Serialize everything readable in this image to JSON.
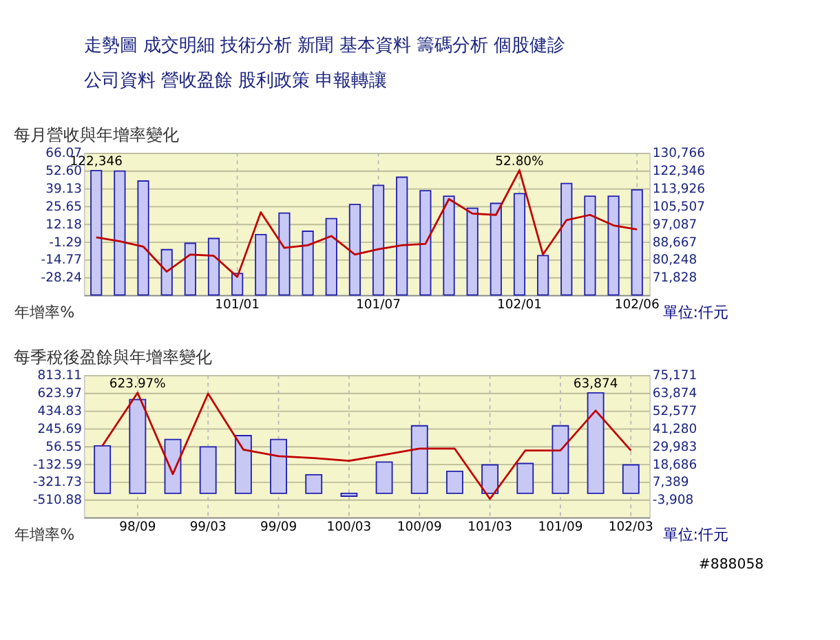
{
  "chart_data": [
    {
      "type": "other",
      "annotations": [
        "走勢圖  成交明細  技術分析  新聞  基本資料  籌碼分析  個股健診",
        "公司資料  營收盈餘  股利政策  申報轉讓"
      ]
    },
    {
      "type": "bar",
      "title": "每月營收與年增率變化",
      "ylabel": "年增率%",
      "y2label": "單位:仟元",
      "categories": [
        null,
        null,
        null,
        null,
        null,
        null,
        "101/01",
        null,
        null,
        null,
        null,
        null,
        "101/07",
        null,
        null,
        null,
        null,
        null,
        "102/01",
        null,
        null,
        null,
        null,
        "102/06"
      ],
      "series": [
        {
          "type": "bar",
          "axis": "y2",
          "color": "#c8c8f4",
          "values": [
            122346,
            122100,
            117400,
            84900,
            87900,
            90200,
            73600,
            92000,
            102200,
            93600,
            99600,
            106300,
            115300,
            119200,
            112800,
            110200,
            104500,
            106800,
            111400,
            82100,
            116200,
            110200,
            110200,
            113200
          ],
          "value_labels": [
            "122,346",
            null,
            null,
            null,
            null,
            null,
            null,
            null,
            null,
            null,
            null,
            null,
            null,
            null,
            null,
            null,
            null,
            null,
            null,
            null,
            null,
            null,
            null,
            null
          ]
        },
        {
          "type": "line",
          "axis": "y",
          "color": "#c00000",
          "values": [
            2,
            -1,
            -5,
            -24,
            -11,
            -12,
            -28,
            21,
            -6,
            -4,
            3,
            -11,
            -7,
            -4,
            -3,
            31,
            20,
            19,
            52.8,
            -11,
            15,
            19,
            11,
            8
          ],
          "value_labels": [
            null,
            null,
            null,
            null,
            null,
            null,
            null,
            null,
            null,
            null,
            null,
            null,
            null,
            null,
            null,
            null,
            null,
            null,
            "52.80%",
            null,
            null,
            null,
            null,
            null
          ]
        }
      ],
      "ylim": [
        -41.71,
        66.07
      ],
      "yticks": [
        {
          "value": 66.07,
          "label": "66.07"
        },
        {
          "value": 52.6,
          "label": "52.60"
        },
        {
          "value": 39.13,
          "label": "39.13"
        },
        {
          "value": 25.65,
          "label": "25.65"
        },
        {
          "value": 12.18,
          "label": "12.18"
        },
        {
          "value": -1.29,
          "label": "-1.29"
        },
        {
          "value": -14.77,
          "label": "-14.77"
        },
        {
          "value": -28.24,
          "label": "-28.24"
        }
      ],
      "y2lim": [
        63408,
        130766
      ],
      "y2ticks": [
        {
          "value": 130766,
          "label": "130,766"
        },
        {
          "value": 122346,
          "label": "122,346"
        },
        {
          "value": 113926,
          "label": "113,926"
        },
        {
          "value": 105507,
          "label": "105,507"
        },
        {
          "value": 97087,
          "label": "97,087"
        },
        {
          "value": 88667,
          "label": "88,667"
        },
        {
          "value": 80248,
          "label": "80,248"
        },
        {
          "value": 71828,
          "label": "71,828"
        }
      ],
      "grid": true
    },
    {
      "type": "bar",
      "title": "每季稅後盈餘與年增率變化",
      "ylabel": "年增率%",
      "y2label": "單位:仟元",
      "annotations": [
        "#888058"
      ],
      "categories": [
        null,
        "98/09",
        null,
        "99/03",
        null,
        "99/09",
        null,
        "100/03",
        null,
        "100/09",
        null,
        "101/03",
        null,
        "101/09",
        null,
        "102/03"
      ],
      "series": [
        {
          "type": "bar",
          "axis": "y2",
          "color": "#c8c8f4",
          "values": [
            30200,
            59600,
            34200,
            29500,
            36700,
            34200,
            11800,
            -1800,
            19900,
            42900,
            14000,
            18100,
            19000,
            42900,
            63874,
            18100
          ],
          "value_labels": [
            null,
            null,
            null,
            null,
            null,
            null,
            null,
            null,
            null,
            null,
            null,
            null,
            null,
            null,
            "63,874",
            null
          ]
        },
        {
          "type": "line",
          "axis": "y",
          "color": "#c00000",
          "values": [
            60,
            623.97,
            -240,
            615,
            20,
            -50,
            -70,
            -100,
            -35,
            30,
            30,
            -505,
            10,
            10,
            435,
            10
          ],
          "value_labels": [
            null,
            "623.97%",
            null,
            null,
            null,
            null,
            null,
            null,
            null,
            null,
            null,
            null,
            null,
            null,
            null,
            null
          ]
        }
      ],
      "ylim": [
        -700.02,
        813.11
      ],
      "yticks": [
        {
          "value": 813.11,
          "label": "813.11"
        },
        {
          "value": 623.97,
          "label": "623.97"
        },
        {
          "value": 434.83,
          "label": "434.83"
        },
        {
          "value": 245.69,
          "label": "245.69"
        },
        {
          "value": 56.55,
          "label": "56.55"
        },
        {
          "value": -132.59,
          "label": "-132.59"
        },
        {
          "value": -321.73,
          "label": "-321.73"
        },
        {
          "value": -510.88,
          "label": "-510.88"
        }
      ],
      "y2lim": [
        -15205,
        75171
      ],
      "y2ticks": [
        {
          "value": 75171,
          "label": "75,171"
        },
        {
          "value": 63874,
          "label": "63,874"
        },
        {
          "value": 52577,
          "label": "52,577"
        },
        {
          "value": 41280,
          "label": "41,280"
        },
        {
          "value": 29983,
          "label": "29,983"
        },
        {
          "value": 18686,
          "label": "18,686"
        },
        {
          "value": 7389,
          "label": "7,389"
        },
        {
          "value": -3908,
          "label": "-3,908"
        }
      ],
      "grid": true
    }
  ]
}
